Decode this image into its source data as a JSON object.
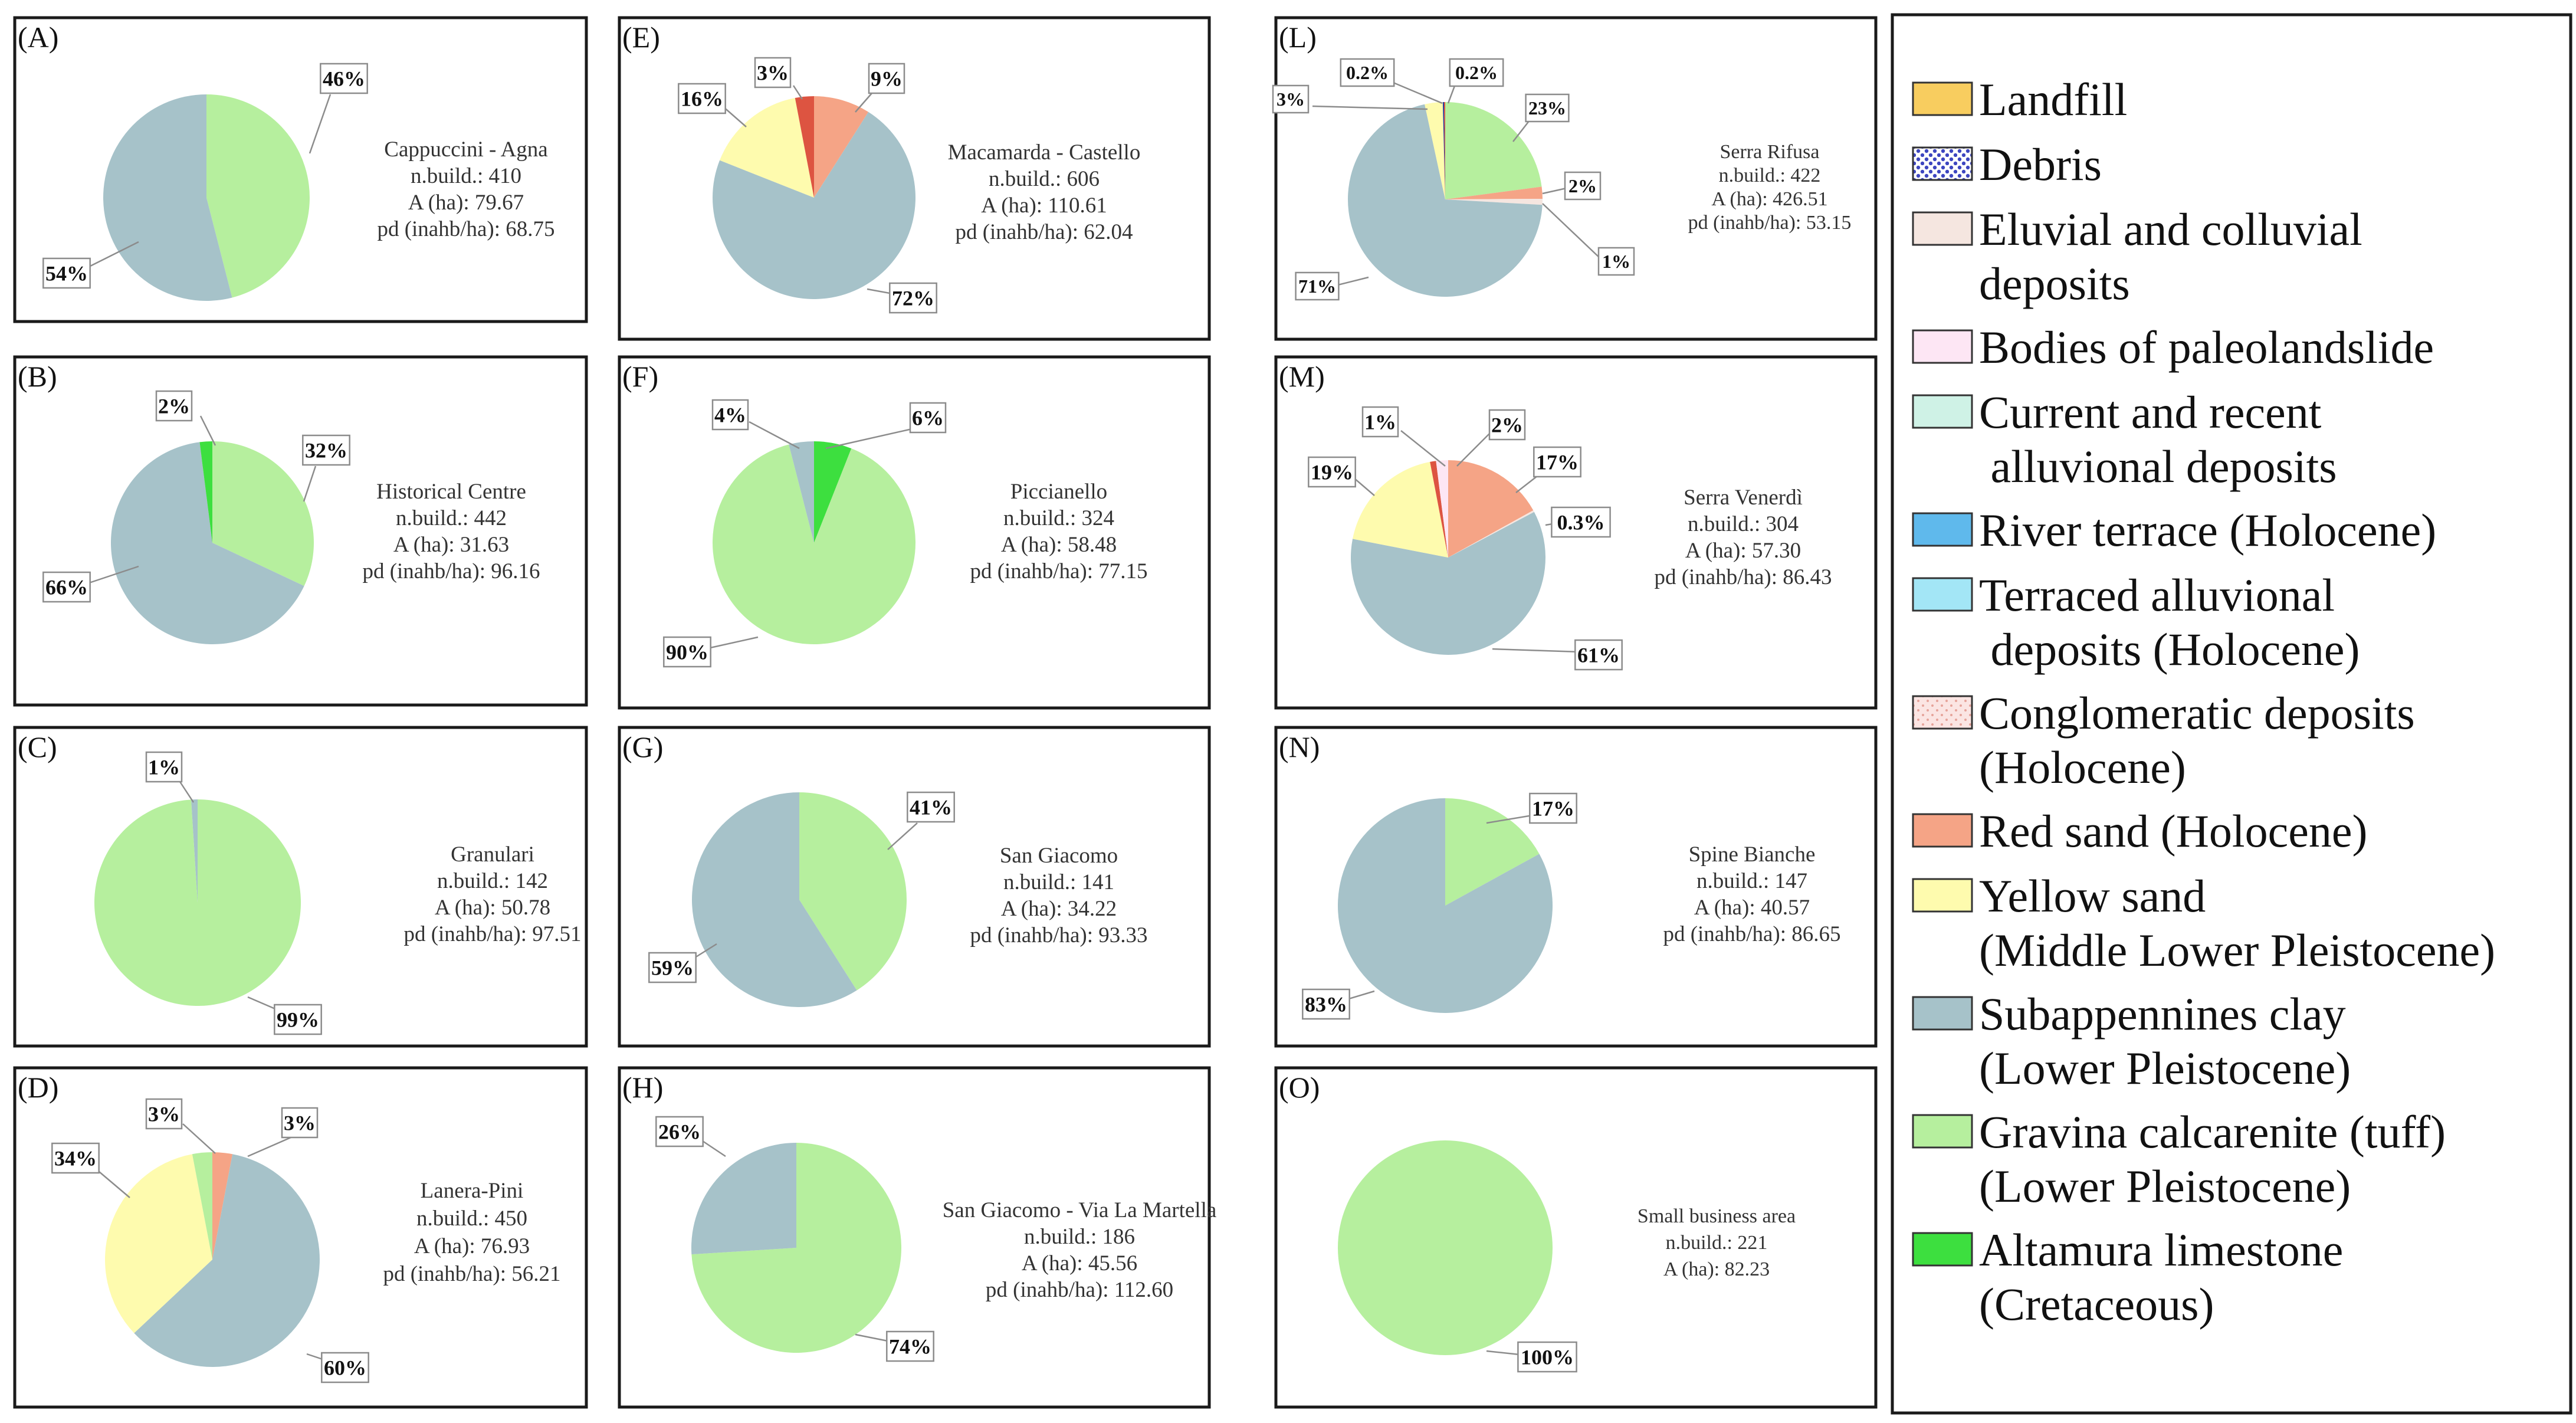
{
  "colors": {
    "landfill": "#f8cd5f",
    "debris": "#3d46c0",
    "eluvial": "#f5e6e0",
    "paleolandslide": "#fde6f4",
    "alluvional": "#cff2e6",
    "river_terrace": "#5fb9ec",
    "terraced_alluvional": "#a3e6f6",
    "conglomeratic": "#fbe5e3",
    "red_sand": "#f5a486",
    "yellow_sand": "#fefbae",
    "clay": "#a6c2c9",
    "gravina": "#b6ef9e",
    "altamura": "#3ddf3f",
    "dark_red": "#dd5441",
    "dark_blue": "#1c3da3",
    "light_blue": "#a6c2c9"
  },
  "legend": {
    "items": [
      {
        "color": "landfill",
        "lines": [
          "Landfill"
        ],
        "pattern": "solid"
      },
      {
        "color": "debris",
        "lines": [
          "Debris"
        ],
        "pattern": "dots"
      },
      {
        "color": "eluvial",
        "lines": [
          "Eluvial and colluvial",
          "deposits"
        ],
        "pattern": "solid"
      },
      {
        "color": "paleolandslide",
        "lines": [
          "Bodies of paleolandslide"
        ],
        "pattern": "solid"
      },
      {
        "color": "alluvional",
        "lines": [
          "Current and recent",
          " alluvional deposits"
        ],
        "pattern": "solid"
      },
      {
        "color": "river_terrace",
        "lines": [
          "River terrace (Holocene)"
        ],
        "pattern": "solid"
      },
      {
        "color": "terraced_alluvional",
        "lines": [
          "Terraced alluvional",
          " deposits (Holocene)"
        ],
        "pattern": "solid"
      },
      {
        "color": "conglomeratic",
        "lines": [
          "Conglomeratic deposits",
          "(Holocene)"
        ],
        "pattern": "pinkdots"
      },
      {
        "color": "red_sand",
        "lines": [
          "Red sand (Holocene)"
        ],
        "pattern": "solid"
      },
      {
        "color": "yellow_sand",
        "lines": [
          "Yellow sand",
          "(Middle Lower Pleistocene)"
        ],
        "pattern": "solid"
      },
      {
        "color": "clay",
        "lines": [
          "Subappennines clay",
          "(Lower Pleistocene)"
        ],
        "pattern": "solid"
      },
      {
        "color": "gravina",
        "lines": [
          "Gravina calcarenite (tuff)",
          "(Lower Pleistocene)"
        ],
        "pattern": "solid"
      },
      {
        "color": "altamura",
        "lines": [
          "Altamura limestone",
          "(Cretaceous)"
        ],
        "pattern": "solid"
      }
    ]
  },
  "chart_data": [
    {
      "type": "pie",
      "panel": "(A)",
      "name": "Cappuccini - Agna",
      "info": [
        "Cappuccini - Agna",
        "n.build.: 410",
        "A (ha): 79.67",
        "pd (inahb/ha): 68.75"
      ],
      "slices": [
        {
          "label": "46%",
          "value": 46,
          "color": "gravina"
        },
        {
          "label": "54%",
          "value": 54,
          "color": "clay"
        }
      ]
    },
    {
      "type": "pie",
      "panel": "(B)",
      "name": "Historical Centre",
      "info": [
        "Historical Centre",
        "n.build.: 442",
        "A (ha): 31.63",
        "pd (inahb/ha): 96.16"
      ],
      "slices": [
        {
          "label": "32%",
          "value": 32,
          "color": "gravina"
        },
        {
          "label": "66%",
          "value": 66,
          "color": "clay"
        },
        {
          "label": "2%",
          "value": 2,
          "color": "altamura"
        }
      ]
    },
    {
      "type": "pie",
      "panel": "(C)",
      "name": "Granulari",
      "info": [
        "Granulari",
        "n.build.: 142",
        "A (ha): 50.78",
        "pd (inahb/ha): 97.51"
      ],
      "slices": [
        {
          "label": "99%",
          "value": 99,
          "color": "gravina"
        },
        {
          "label": "1%",
          "value": 1,
          "color": "clay"
        }
      ]
    },
    {
      "type": "pie",
      "panel": "(D)",
      "name": "Lanera-Pini",
      "info": [
        "Lanera-Pini",
        "n.build.: 450",
        "A (ha): 76.93",
        "pd (inahb/ha): 56.21"
      ],
      "slices": [
        {
          "label": "3%",
          "value": 3,
          "color": "red_sand"
        },
        {
          "label": "60%",
          "value": 60,
          "color": "clay"
        },
        {
          "label": "34%",
          "value": 34,
          "color": "yellow_sand"
        },
        {
          "label": "3%",
          "value": 3,
          "color": "gravina"
        }
      ]
    },
    {
      "type": "pie",
      "panel": "(E)",
      "name": "Macamarda - Castello",
      "info": [
        "Macamarda - Castello",
        "n.build.: 606",
        "A (ha): 110.61",
        "pd (inahb/ha): 62.04"
      ],
      "slices": [
        {
          "label": "9%",
          "value": 9,
          "color": "red_sand"
        },
        {
          "label": "72%",
          "value": 72,
          "color": "clay"
        },
        {
          "label": "16%",
          "value": 16,
          "color": "yellow_sand"
        },
        {
          "label": "3%",
          "value": 3,
          "color": "dark_red"
        }
      ]
    },
    {
      "type": "pie",
      "panel": "(F)",
      "name": "Piccianello",
      "info": [
        "Piccianello",
        "n.build.: 324",
        "A (ha): 58.48",
        "pd (inahb/ha): 77.15"
      ],
      "slices": [
        {
          "label": "6%",
          "value": 6,
          "color": "altamura"
        },
        {
          "label": "90%",
          "value": 90,
          "color": "gravina"
        },
        {
          "label": "4%",
          "value": 4,
          "color": "clay"
        }
      ]
    },
    {
      "type": "pie",
      "panel": "(G)",
      "name": "San Giacomo",
      "info": [
        "San Giacomo",
        "n.build.: 141",
        "A (ha): 34.22",
        "pd (inahb/ha): 93.33"
      ],
      "slices": [
        {
          "label": "41%",
          "value": 41,
          "color": "gravina"
        },
        {
          "label": "59%",
          "value": 59,
          "color": "clay"
        }
      ]
    },
    {
      "type": "pie",
      "panel": "(H)",
      "name": "San Giacomo - Via La Martella",
      "info": [
        "San Giacomo - Via La Martella",
        "n.build.: 186",
        "A (ha): 45.56",
        "pd (inahb/ha): 112.60"
      ],
      "slices": [
        {
          "label": "74%",
          "value": 74,
          "color": "gravina"
        },
        {
          "label": "26%",
          "value": 26,
          "color": "clay"
        }
      ]
    },
    {
      "type": "pie",
      "panel": "(L)",
      "name": "Serra Rifusa",
      "info": [
        "Serra Rifusa",
        "n.build.: 422",
        "A (ha): 426.51",
        "pd (inahb/ha): 53.15"
      ],
      "slices": [
        {
          "label": "23%",
          "value": 23,
          "color": "gravina"
        },
        {
          "label": "2%",
          "value": 2,
          "color": "red_sand"
        },
        {
          "label": "1%",
          "value": 1,
          "color": "eluvial"
        },
        {
          "label": "71%",
          "value": 71,
          "color": "clay"
        },
        {
          "label": "3%",
          "value": 3,
          "color": "yellow_sand"
        },
        {
          "label": "0.2%",
          "value": 0.2,
          "color": "dark_blue"
        },
        {
          "label": "0.2%",
          "value": 0.2,
          "color": "dark_red"
        }
      ]
    },
    {
      "type": "pie",
      "panel": "(M)",
      "name": "Serra Venerdì",
      "info": [
        "Serra Venerdì",
        "n.build.: 304",
        "A (ha): 57.30",
        "pd (inahb/ha): 86.43"
      ],
      "slices": [
        {
          "label": "17%",
          "value": 17,
          "color": "red_sand"
        },
        {
          "label": "0.3%",
          "value": 0.3,
          "color": "eluvial"
        },
        {
          "label": "61%",
          "value": 61,
          "color": "clay"
        },
        {
          "label": "19%",
          "value": 19,
          "color": "yellow_sand"
        },
        {
          "label": "1%",
          "value": 1,
          "color": "dark_red"
        },
        {
          "label": "2%",
          "value": 2,
          "color": "paleolandslide"
        }
      ]
    },
    {
      "type": "pie",
      "panel": "(N)",
      "name": "Spine Bianche",
      "info": [
        "Spine Bianche",
        "n.build.: 147",
        "A (ha): 40.57",
        "pd (inahb/ha): 86.65"
      ],
      "slices": [
        {
          "label": "17%",
          "value": 17,
          "color": "gravina"
        },
        {
          "label": "83%",
          "value": 83,
          "color": "clay"
        }
      ]
    },
    {
      "type": "pie",
      "panel": "(O)",
      "name": "Small business area",
      "info": [
        "Small business area",
        "n.build.: 221",
        "A (ha): 82.23"
      ],
      "slices": [
        {
          "label": "100%",
          "value": 100,
          "color": "gravina"
        }
      ]
    }
  ]
}
